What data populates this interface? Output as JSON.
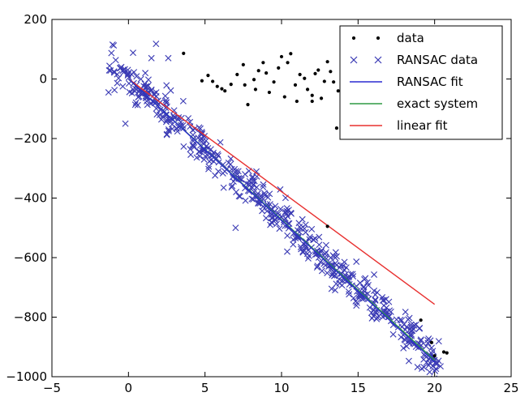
{
  "chart_data": {
    "type": "scatter",
    "title": "",
    "xlabel": "",
    "ylabel": "",
    "xlim": [
      -5,
      25
    ],
    "ylim": [
      -1000,
      200
    ],
    "xticks": [
      -5,
      0,
      5,
      10,
      15,
      20,
      25
    ],
    "yticks": [
      200,
      0,
      -200,
      -400,
      -600,
      -800,
      -1000
    ],
    "grid": false,
    "legend_position": "top-right",
    "colors": {
      "data": "#000000",
      "ransac_data": "#3a3ab4",
      "ransac_fit": "#2a2ad0",
      "exact_system": "#2e9a44",
      "linear_fit": "#e8302f"
    },
    "series": [
      {
        "name": "data",
        "kind": "points",
        "marker": "dot",
        "points": [
          [
            3.6,
            86
          ],
          [
            4.8,
            -6
          ],
          [
            5.2,
            12
          ],
          [
            5.5,
            -8
          ],
          [
            5.8,
            -25
          ],
          [
            6.3,
            -40
          ],
          [
            6.1,
            -33
          ],
          [
            7.1,
            15
          ],
          [
            7.5,
            48
          ],
          [
            7.6,
            -20
          ],
          [
            7.8,
            -86
          ],
          [
            8.2,
            -2
          ],
          [
            8.5,
            28
          ],
          [
            8.8,
            55
          ],
          [
            9.0,
            20
          ],
          [
            9.2,
            -45
          ],
          [
            9.5,
            -10
          ],
          [
            9.8,
            37
          ],
          [
            10.0,
            75
          ],
          [
            10.2,
            -60
          ],
          [
            10.4,
            55
          ],
          [
            10.6,
            85
          ],
          [
            10.9,
            -20
          ],
          [
            11.2,
            15
          ],
          [
            11.5,
            2
          ],
          [
            11.7,
            -35
          ],
          [
            12.0,
            -55
          ],
          [
            12.2,
            18
          ],
          [
            12.4,
            30
          ],
          [
            12.6,
            -65
          ],
          [
            12.8,
            -8
          ],
          [
            13.0,
            58
          ],
          [
            13.2,
            25
          ],
          [
            13.4,
            -10
          ],
          [
            13.7,
            -40
          ],
          [
            14.0,
            8
          ],
          [
            13.6,
            -165
          ],
          [
            14.3,
            55
          ],
          [
            14.6,
            -100
          ],
          [
            14.9,
            100
          ],
          [
            15.1,
            105
          ],
          [
            8.3,
            -35
          ],
          [
            11.0,
            -75
          ],
          [
            12.0,
            -75
          ],
          [
            6.7,
            -18
          ],
          [
            13.0,
            -495
          ],
          [
            19.1,
            -810
          ],
          [
            20.0,
            -930
          ],
          [
            20.6,
            -917
          ],
          [
            20.8,
            -920
          ],
          [
            19.8,
            -885
          ]
        ]
      },
      {
        "name": "RANSAC data",
        "kind": "points",
        "marker": "x",
        "count": 560,
        "x_range": [
          -1.3,
          20.5
        ],
        "slope": -47,
        "intercept": 0,
        "noise": 40,
        "extra_points": [
          [
            -1.3,
            -45
          ],
          [
            0.3,
            88
          ],
          [
            1.8,
            118
          ],
          [
            -0.2,
            -150
          ],
          [
            1.1,
            20
          ],
          [
            2.6,
            70
          ],
          [
            1.5,
            70
          ],
          [
            7.0,
            -500
          ]
        ]
      },
      {
        "name": "RANSAC fit",
        "kind": "line",
        "x": [
          0,
          20
        ],
        "y": [
          0,
          -950
        ]
      },
      {
        "name": "exact system",
        "kind": "line",
        "x": [
          0,
          20
        ],
        "y": [
          0,
          -945
        ]
      },
      {
        "name": "linear fit",
        "kind": "line",
        "x": [
          0,
          20
        ],
        "y": [
          0,
          -757
        ]
      }
    ]
  }
}
